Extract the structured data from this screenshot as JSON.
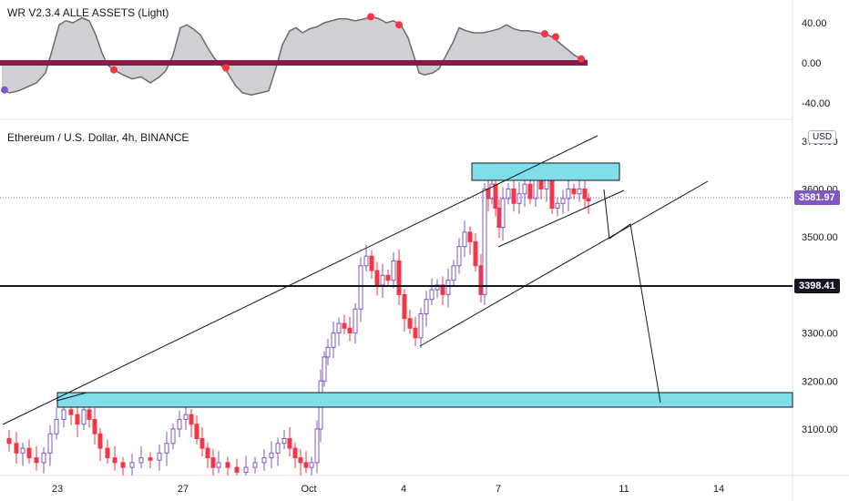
{
  "indicator": {
    "title": "WR V2.3.4 ALLE ASSETS (Light)",
    "axis_labels": [
      "40.00",
      "0.00",
      "-40.00"
    ],
    "axis_values": [
      40,
      0,
      -40
    ],
    "wave": [
      [
        2,
        -26
      ],
      [
        10,
        -30
      ],
      [
        20,
        -28
      ],
      [
        30,
        -24
      ],
      [
        40,
        -20
      ],
      [
        50,
        -10
      ],
      [
        58,
        15
      ],
      [
        65,
        38
      ],
      [
        72,
        42
      ],
      [
        80,
        40
      ],
      [
        90,
        45
      ],
      [
        98,
        42
      ],
      [
        105,
        28
      ],
      [
        112,
        10
      ],
      [
        118,
        -2
      ],
      [
        125,
        -7
      ],
      [
        135,
        -12
      ],
      [
        145,
        -16
      ],
      [
        155,
        -14
      ],
      [
        165,
        -20
      ],
      [
        175,
        -14
      ],
      [
        182,
        -8
      ],
      [
        190,
        8
      ],
      [
        198,
        35
      ],
      [
        205,
        38
      ],
      [
        212,
        34
      ],
      [
        220,
        28
      ],
      [
        228,
        15
      ],
      [
        235,
        5
      ],
      [
        242,
        -2
      ],
      [
        250,
        -10
      ],
      [
        258,
        -22
      ],
      [
        266,
        -30
      ],
      [
        276,
        -32
      ],
      [
        286,
        -30
      ],
      [
        295,
        -28
      ],
      [
        303,
        -5
      ],
      [
        310,
        18
      ],
      [
        318,
        32
      ],
      [
        325,
        35
      ],
      [
        332,
        30
      ],
      [
        340,
        34
      ],
      [
        348,
        36
      ],
      [
        356,
        40
      ],
      [
        364,
        42
      ],
      [
        372,
        44
      ],
      [
        380,
        44
      ],
      [
        390,
        42
      ],
      [
        400,
        44
      ],
      [
        408,
        46
      ],
      [
        416,
        44
      ],
      [
        424,
        40
      ],
      [
        432,
        42
      ],
      [
        440,
        38
      ],
      [
        448,
        25
      ],
      [
        455,
        5
      ],
      [
        460,
        -10
      ],
      [
        466,
        -12
      ],
      [
        475,
        -10
      ],
      [
        482,
        -6
      ],
      [
        490,
        8
      ],
      [
        497,
        20
      ],
      [
        504,
        35
      ],
      [
        512,
        32
      ],
      [
        520,
        30
      ],
      [
        530,
        30
      ],
      [
        540,
        32
      ],
      [
        548,
        34
      ],
      [
        556,
        38
      ],
      [
        564,
        34
      ],
      [
        572,
        32
      ],
      [
        580,
        32
      ],
      [
        590,
        30
      ],
      [
        598,
        29
      ],
      [
        606,
        26
      ],
      [
        614,
        20
      ],
      [
        622,
        14
      ],
      [
        630,
        8
      ],
      [
        638,
        4
      ],
      [
        645,
        2
      ]
    ],
    "dots": [
      [
        5,
        -27,
        "#7e57c2"
      ],
      [
        125,
        -7,
        "#f23645"
      ],
      [
        248,
        -5,
        "#f23645"
      ],
      [
        407,
        46,
        "#f23645"
      ],
      [
        438,
        38,
        "#f23645"
      ],
      [
        598,
        29,
        "#f23645"
      ],
      [
        610,
        26,
        "#f23645"
      ],
      [
        638,
        4,
        "#f23645"
      ]
    ],
    "zero_color": "#8b1a4a",
    "fill_color": "#c8c8cc",
    "line_color": "#6b6b6b"
  },
  "main": {
    "title": "Ethereum / U.S. Dollar, 4h, BINANCE",
    "currency_badge": "USD",
    "axis_labels": [
      "3700.00",
      "3600.00",
      "3500.00",
      "3300.00",
      "3200.00",
      "3100.00"
    ],
    "axis_values": [
      3700,
      3600,
      3500,
      3300,
      3200,
      3100
    ],
    "current_price": "3581.97",
    "current_price_value": 3581.97,
    "level_price": "3398.41",
    "level_price_value": 3398.41,
    "up_color": "#7e57c2",
    "down_color": "#f23645",
    "zone_color": "#80deea"
  },
  "time_axis": {
    "labels": [
      "23",
      "27",
      "Oct",
      "4",
      "7",
      "11",
      "14"
    ],
    "positions": [
      63,
      201,
      339,
      443,
      547,
      685,
      789
    ]
  }
}
